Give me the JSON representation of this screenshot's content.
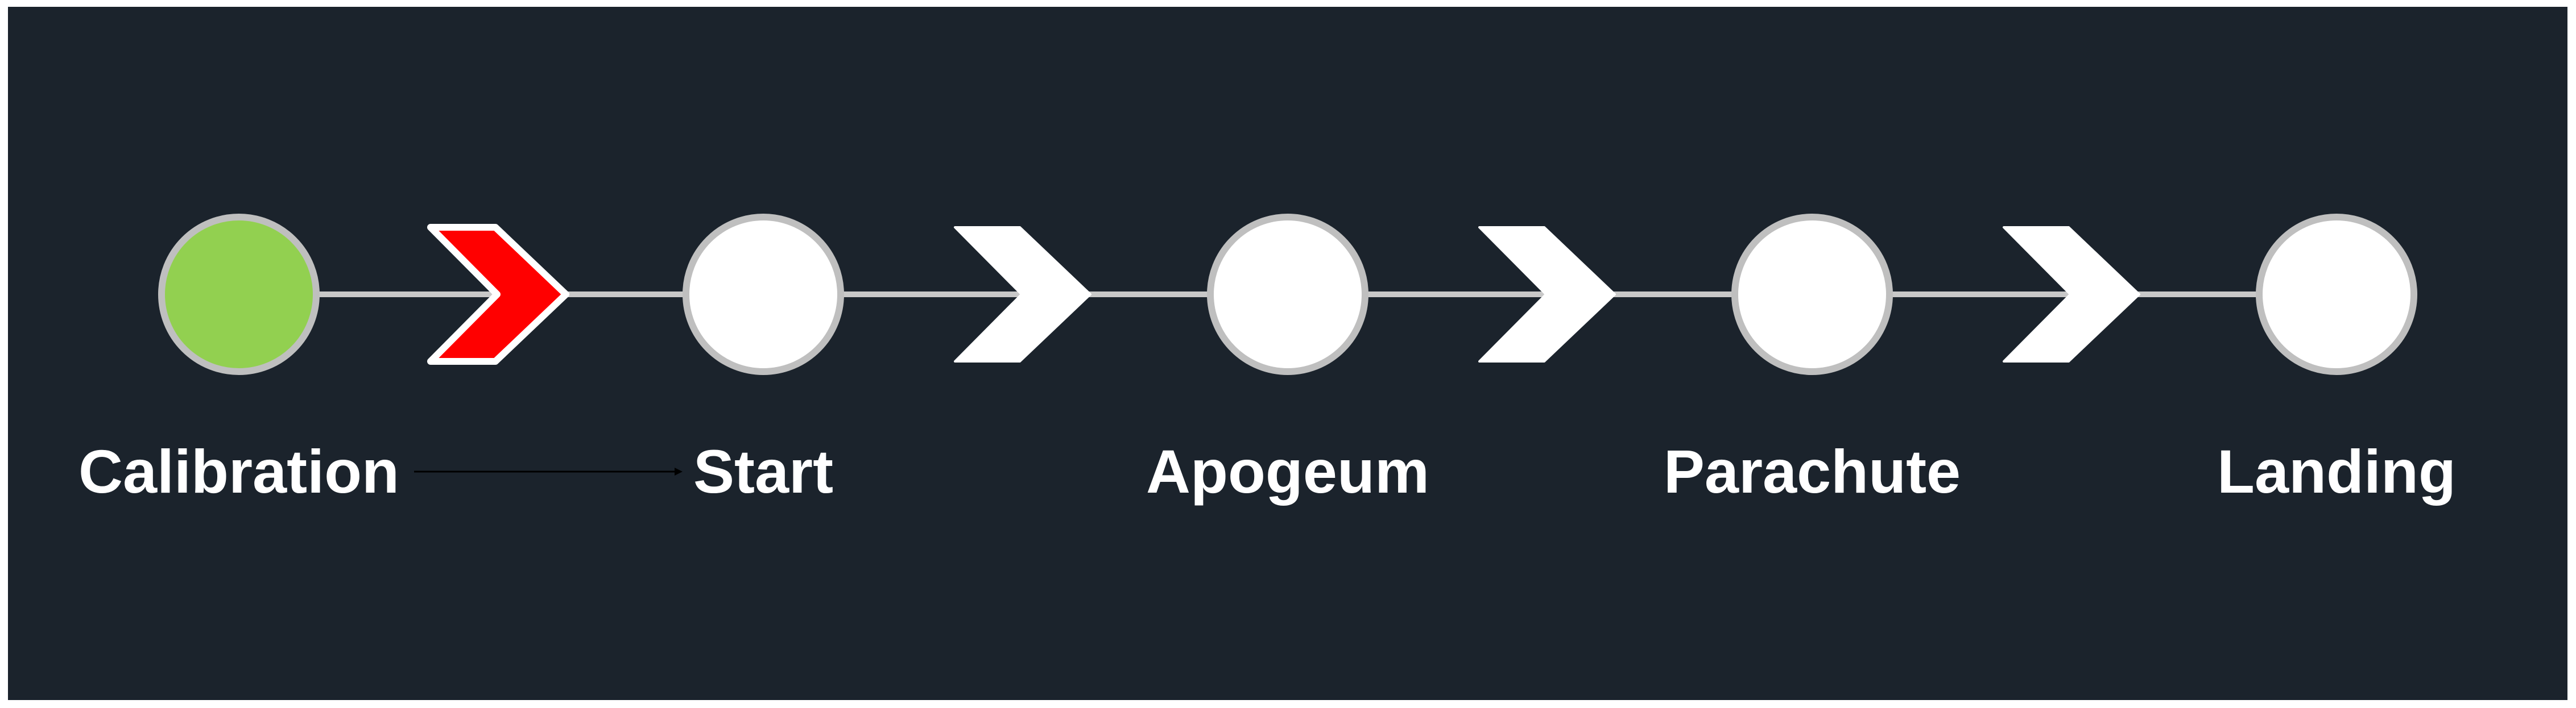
{
  "stages": [
    {
      "label": "Calibration",
      "state": "done"
    },
    {
      "label": "Start",
      "state": "pending"
    },
    {
      "label": "Apogeum",
      "state": "pending"
    },
    {
      "label": "Parachute",
      "state": "pending"
    },
    {
      "label": "Landing",
      "state": "pending"
    }
  ],
  "transitions": [
    {
      "state": "active"
    },
    {
      "state": "pending"
    },
    {
      "state": "pending"
    },
    {
      "state": "pending"
    }
  ],
  "colors": {
    "background": "#1b232c",
    "done_fill": "#92d050",
    "pending_fill": "#ffffff",
    "node_border": "#bfbfbf",
    "connector": "#c8c8c8",
    "active_arrow": "#ff0000",
    "label_text": "#ffffff"
  },
  "icons": {
    "transition": "chevron-right-icon",
    "link": "arrow-line"
  }
}
